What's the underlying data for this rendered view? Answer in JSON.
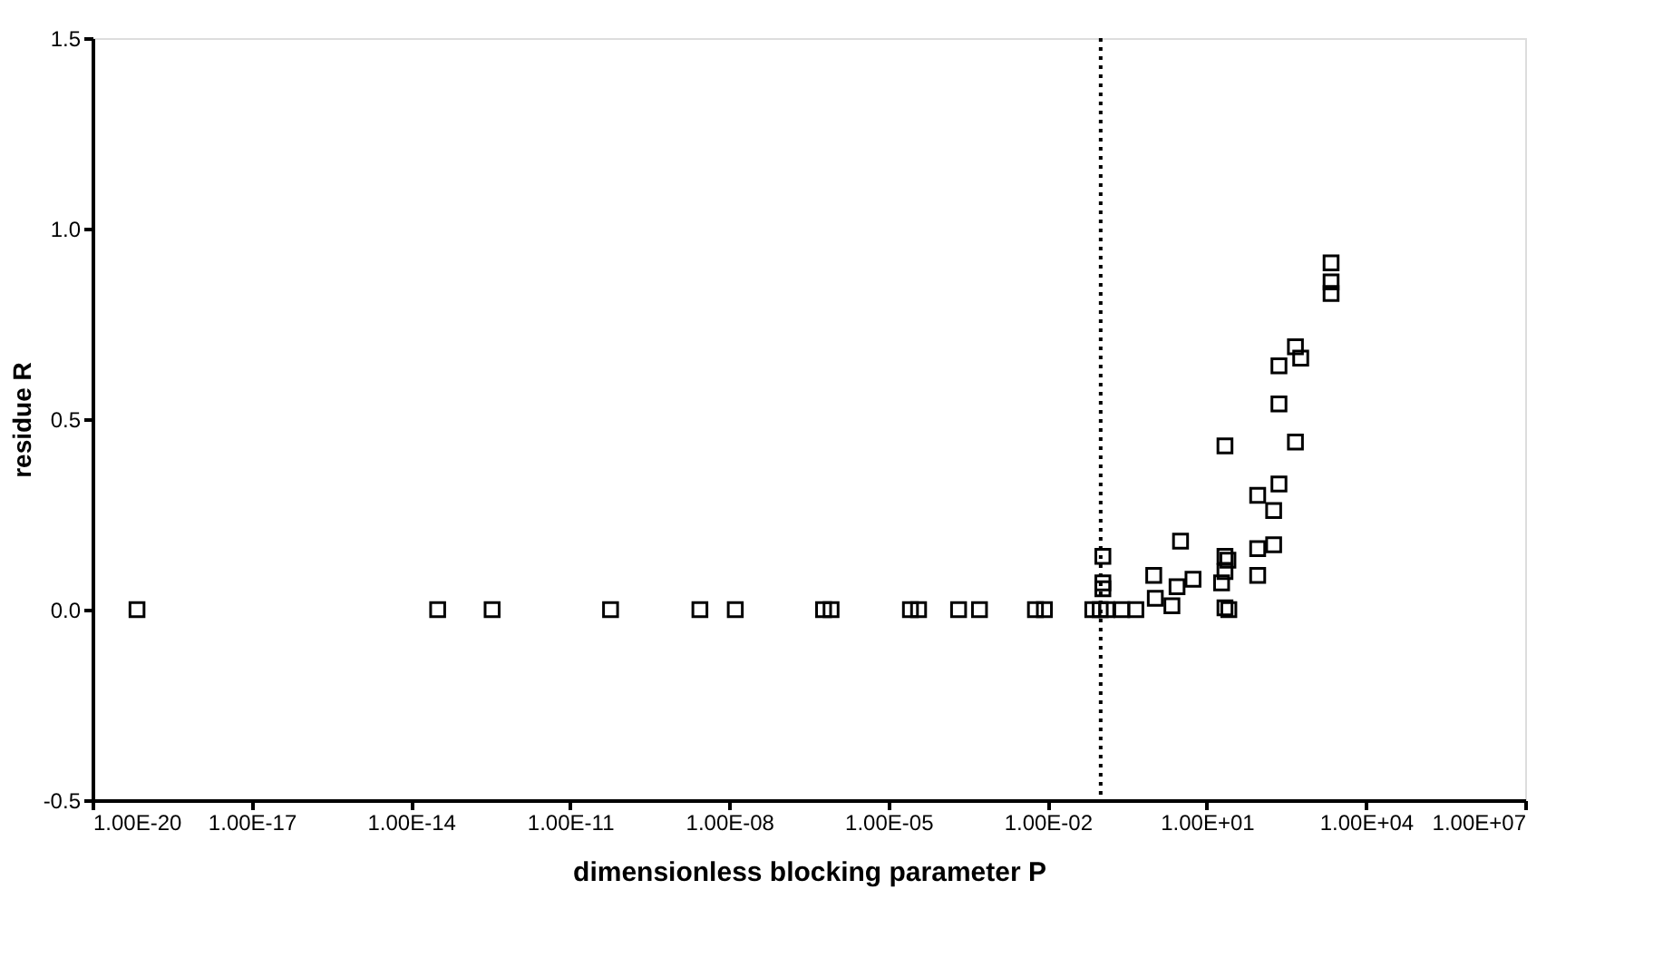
{
  "chart_data": {
    "type": "scatter",
    "xlabel": "dimensionless blocking parameter P",
    "ylabel": "residue R",
    "log": "x",
    "marker": "square",
    "grid": false,
    "xlim": [
      1e-20,
      10000000.0
    ],
    "ylim": [
      -0.5,
      1.5
    ],
    "xticks": [
      {
        "value": 1e-20,
        "label": "1.00E-20"
      },
      {
        "value": 1e-17,
        "label": "1.00E-17"
      },
      {
        "value": 1e-14,
        "label": "1.00E-14"
      },
      {
        "value": 1e-11,
        "label": "1.00E-11"
      },
      {
        "value": 1e-08,
        "label": "1.00E-08"
      },
      {
        "value": 1e-05,
        "label": "1.00E-05"
      },
      {
        "value": 0.01,
        "label": "1.00E-02"
      },
      {
        "value": 10,
        "label": "1.00E+01"
      },
      {
        "value": 10000,
        "label": "1.00E+04"
      },
      {
        "value": 10000000,
        "label": "1.00E+07"
      }
    ],
    "yticks": [
      {
        "value": -0.5,
        "label": "-0.5"
      },
      {
        "value": 0,
        "label": "0.0"
      },
      {
        "value": 0.5,
        "label": "0.5"
      },
      {
        "value": 1,
        "label": "1.0"
      },
      {
        "value": 1.5,
        "label": "1.5"
      }
    ],
    "ref_lines": [
      {
        "axis": "x",
        "value": 0.1,
        "line_style": "dotted",
        "color": "#000000"
      }
    ],
    "series": [
      {
        "color": "#000000",
        "x": [
          6.9e-20,
          3.2e-14,
          3.4e-13,
          5.8e-11,
          2.8e-09,
          1.3e-08,
          6e-07,
          8.3e-07,
          2.6e-05,
          3.7e-05,
          0.00021,
          0.00052,
          0.0059,
          0.0087,
          0.071,
          0.098,
          0.13,
          0.25,
          0.46,
          0.11,
          0.11,
          0.11,
          1.0,
          1.07,
          2.2,
          2.75,
          3.2,
          5.5,
          19,
          22,
          25,
          22,
          22,
          26,
          22,
          91,
          91,
          91,
          182,
          182,
          229,
          229,
          229,
          468,
          468,
          589,
          2200,
          2200,
          2200
        ],
        "values": [
          0,
          0,
          0,
          0,
          0,
          0,
          0,
          0,
          0,
          0,
          0,
          0,
          0,
          0,
          0,
          0,
          0,
          0,
          0,
          0.14,
          0.07,
          0.055,
          0.09,
          0.03,
          0.01,
          0.06,
          0.18,
          0.08,
          0.07,
          0.14,
          0.13,
          0.1,
          0.005,
          0,
          0.43,
          0.16,
          0.09,
          0.3,
          0.17,
          0.26,
          0.33,
          0.54,
          0.64,
          0.44,
          0.69,
          0.66,
          0.91,
          0.86,
          0.83
        ]
      }
    ]
  }
}
